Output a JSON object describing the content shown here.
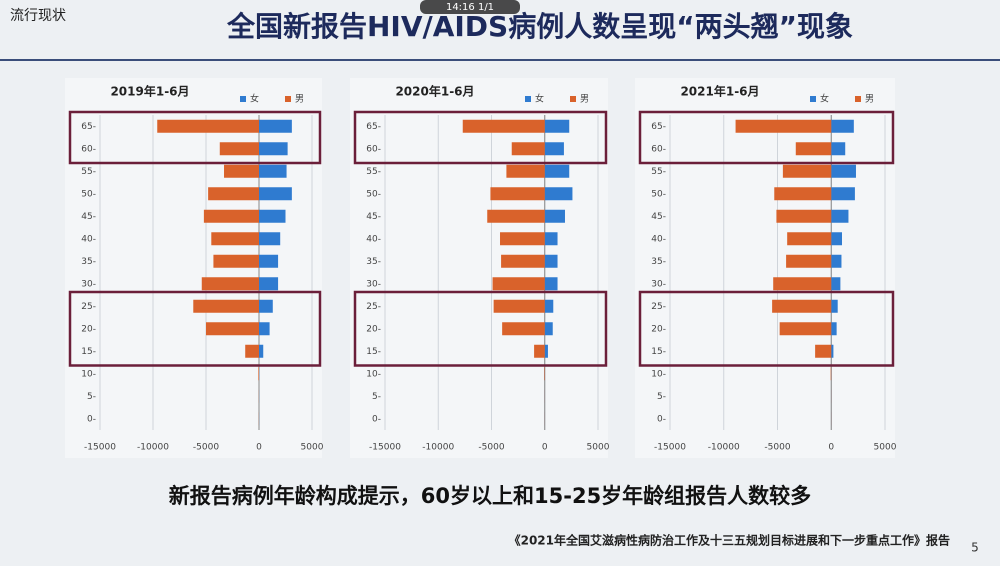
{
  "slide": {
    "section": "流行现状",
    "title": "全国新报告HIV/AIDS病例人数呈现“两头翘”现象",
    "overlay": "14:16 1/1",
    "conclusion": "新报告病例年龄构成提示，60岁以上和15-25岁年龄组报告人数较多",
    "source": "《2021年全国艾滋病性病防治工作及十三五规划目标进展和下一步重点工作》报告",
    "page": "5"
  },
  "chart_data": [
    {
      "type": "bar",
      "orientation": "horizontal",
      "title": "2019年1-6月",
      "categories": [
        "0-",
        "5-",
        "10-",
        "15-",
        "20-",
        "25-",
        "30-",
        "35-",
        "40-",
        "45-",
        "50-",
        "55-",
        "60-",
        "65-"
      ],
      "series": [
        {
          "name": "女",
          "color": "#2f7bd0",
          "values": [
            10,
            10,
            20,
            400,
            1000,
            1300,
            1800,
            1800,
            2000,
            2500,
            3100,
            2600,
            2700,
            3100
          ]
        },
        {
          "name": "男",
          "color": "#d9622b",
          "values": [
            -10,
            -10,
            -60,
            -1300,
            -5000,
            -6200,
            -5400,
            -4300,
            -4500,
            -5200,
            -4800,
            -3300,
            -3700,
            -9600
          ]
        }
      ],
      "xlim": [
        -15000,
        5000
      ],
      "xticks": [
        -15000,
        -10000,
        -5000,
        0,
        5000
      ],
      "grid": true
    },
    {
      "type": "bar",
      "orientation": "horizontal",
      "title": "2020年1-6月",
      "categories": [
        "0-",
        "5-",
        "10-",
        "15-",
        "20-",
        "25-",
        "30-",
        "35-",
        "40-",
        "45-",
        "50-",
        "55-",
        "60-",
        "65-"
      ],
      "series": [
        {
          "name": "女",
          "color": "#2f7bd0",
          "values": [
            10,
            10,
            20,
            300,
            750,
            800,
            1200,
            1200,
            1200,
            1900,
            2600,
            2300,
            1800,
            2300
          ]
        },
        {
          "name": "男",
          "color": "#d9622b",
          "values": [
            -10,
            -10,
            -50,
            -1000,
            -4000,
            -4800,
            -4900,
            -4100,
            -4200,
            -5400,
            -5100,
            -3600,
            -3100,
            -7700
          ]
        }
      ],
      "xlim": [
        -15000,
        5000
      ],
      "xticks": [
        -15000,
        -10000,
        -5000,
        0,
        5000
      ],
      "grid": true
    },
    {
      "type": "bar",
      "orientation": "horizontal",
      "title": "2021年1-6月",
      "categories": [
        "0-",
        "5-",
        "10-",
        "15-",
        "20-",
        "25-",
        "30-",
        "35-",
        "40-",
        "45-",
        "50-",
        "55-",
        "60-",
        "65-"
      ],
      "series": [
        {
          "name": "女",
          "color": "#2f7bd0",
          "values": [
            10,
            10,
            20,
            200,
            500,
            600,
            850,
            950,
            1000,
            1600,
            2200,
            2300,
            1300,
            2100
          ]
        },
        {
          "name": "男",
          "color": "#d9622b",
          "values": [
            -10,
            -10,
            -50,
            -1500,
            -4800,
            -5500,
            -5400,
            -4200,
            -4100,
            -5100,
            -5300,
            -4500,
            -3300,
            -8900
          ]
        }
      ],
      "xlim": [
        -15000,
        5000
      ],
      "xticks": [
        -15000,
        -10000,
        -5000,
        0,
        5000
      ],
      "grid": true
    }
  ]
}
